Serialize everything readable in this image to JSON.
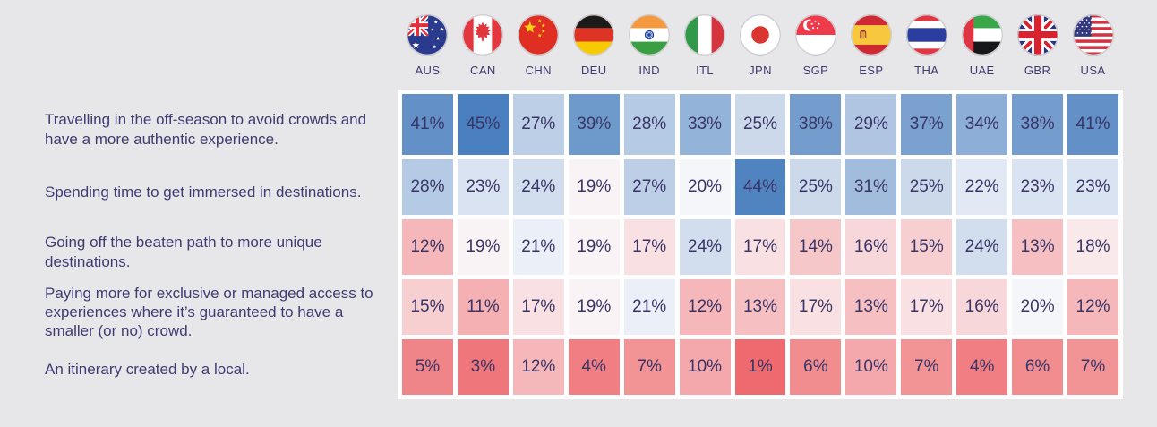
{
  "chart_data": {
    "type": "heatmap",
    "value_format": "percent",
    "legend": "none",
    "columns": [
      {
        "code": "AUS",
        "flag_icon": "australia-flag-icon"
      },
      {
        "code": "CAN",
        "flag_icon": "canada-flag-icon"
      },
      {
        "code": "CHN",
        "flag_icon": "china-flag-icon"
      },
      {
        "code": "DEU",
        "flag_icon": "germany-flag-icon"
      },
      {
        "code": "IND",
        "flag_icon": "india-flag-icon"
      },
      {
        "code": "ITL",
        "flag_icon": "italy-flag-icon"
      },
      {
        "code": "JPN",
        "flag_icon": "japan-flag-icon"
      },
      {
        "code": "SGP",
        "flag_icon": "singapore-flag-icon"
      },
      {
        "code": "ESP",
        "flag_icon": "spain-flag-icon"
      },
      {
        "code": "THA",
        "flag_icon": "thailand-flag-icon"
      },
      {
        "code": "UAE",
        "flag_icon": "uae-flag-icon"
      },
      {
        "code": "GBR",
        "flag_icon": "uk-flag-icon"
      },
      {
        "code": "USA",
        "flag_icon": "usa-flag-icon"
      }
    ],
    "rows": [
      {
        "label": "Travelling in the off-season to avoid crowds and have a more authentic experience.",
        "values": [
          41,
          45,
          27,
          39,
          28,
          33,
          25,
          38,
          29,
          37,
          34,
          38,
          41
        ]
      },
      {
        "label": "Spending time to get immersed in destinations.",
        "values": [
          28,
          23,
          24,
          19,
          27,
          20,
          44,
          25,
          31,
          25,
          22,
          23,
          23
        ]
      },
      {
        "label": "Going off the beaten path to more unique destinations.",
        "values": [
          12,
          19,
          21,
          19,
          17,
          24,
          17,
          14,
          16,
          15,
          24,
          13,
          18
        ]
      },
      {
        "label": "Paying more for exclusive or managed access to experiences where it’s guaranteed to have a smaller (or no) crowd.",
        "values": [
          15,
          11,
          17,
          19,
          21,
          12,
          13,
          17,
          13,
          17,
          16,
          20,
          12
        ]
      },
      {
        "label": "An itinerary created by a local.",
        "values": [
          5,
          3,
          12,
          4,
          7,
          10,
          1,
          6,
          10,
          7,
          4,
          6,
          7
        ]
      }
    ],
    "color_scale": {
      "low": "#ee6a6e",
      "mid": "#fbfafc",
      "high": "#4a80bf",
      "min": 1,
      "midpoint": 19.5,
      "max": 45
    }
  },
  "colors": {
    "page_background": "#e7e6e8",
    "grid_background": "#ffffff",
    "text": "#3d3a70"
  }
}
